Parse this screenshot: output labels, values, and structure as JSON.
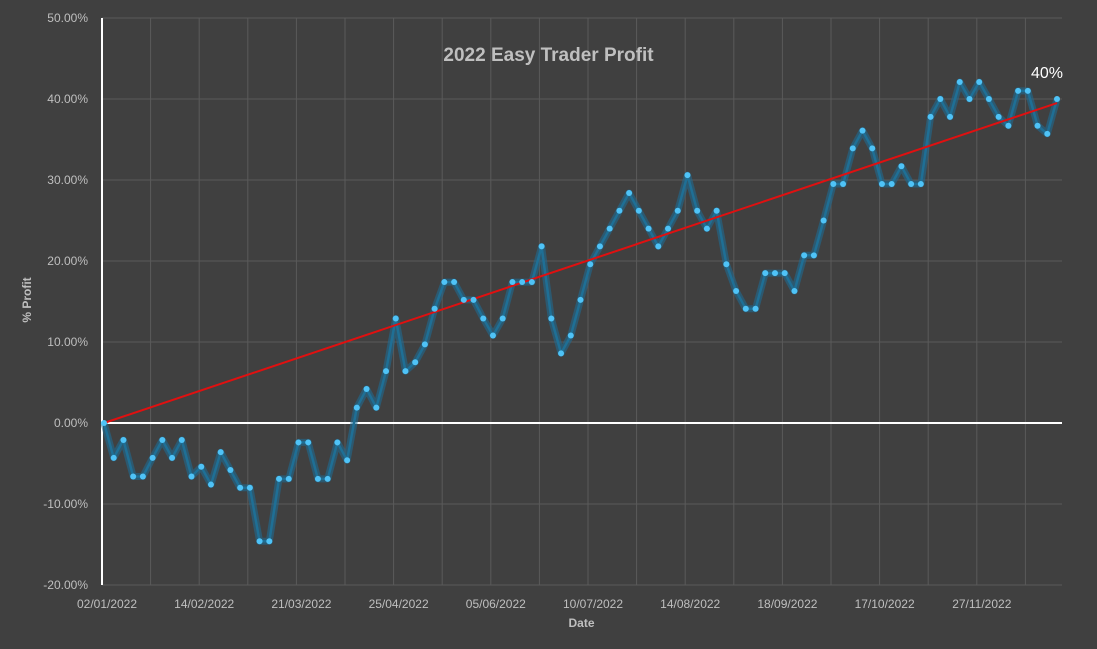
{
  "chart_data": {
    "type": "line",
    "title": "2022 Easy Trader Profit",
    "xlabel": "Date",
    "ylabel": "% Profit",
    "ylim": [
      -0.2,
      0.5
    ],
    "y_format": "percent",
    "x_tick_labels": [
      "02/01/2022",
      "14/02/2022",
      "21/03/2022",
      "25/04/2022",
      "05/06/2022",
      "10/07/2022",
      "14/08/2022",
      "18/09/2022",
      "17/10/2022",
      "27/11/2022"
    ],
    "y_tick_labels": [
      "50.00%",
      "40.00%",
      "30.00%",
      "20.00%",
      "10.00%",
      "0.00%",
      "-10.00%",
      "-20.00%"
    ],
    "grid": true,
    "end_label": "40%",
    "colors": {
      "background": "#404040",
      "series": "#4fc3f7",
      "series_glow": "#1c6e98",
      "trendline": "#e01010",
      "zero_line": "#ffffff",
      "grid": "#5a5a5a",
      "text": "#bfbfbf"
    },
    "series": [
      {
        "values": [
          0.0,
          -0.043,
          -0.021,
          -0.066,
          -0.066,
          -0.043,
          -0.021,
          -0.043,
          -0.021,
          -0.066,
          -0.054,
          -0.076,
          -0.036,
          -0.058,
          -0.08,
          -0.08,
          -0.146,
          -0.146,
          -0.069,
          -0.069,
          -0.024,
          -0.024,
          -0.069,
          -0.069,
          -0.024,
          -0.046,
          0.019,
          0.042,
          0.019,
          0.064,
          0.129,
          0.064,
          0.075,
          0.097,
          0.141,
          0.174,
          0.174,
          0.152,
          0.152,
          0.129,
          0.108,
          0.129,
          0.174,
          0.174,
          0.174,
          0.218,
          0.129,
          0.086,
          0.108,
          0.152,
          0.196,
          0.218,
          0.24,
          0.262,
          0.284,
          0.262,
          0.24,
          0.218,
          0.24,
          0.262,
          0.306,
          0.262,
          0.24,
          0.262,
          0.196,
          0.163,
          0.141,
          0.141,
          0.185,
          0.185,
          0.185,
          0.163,
          0.207,
          0.207,
          0.25,
          0.295,
          0.295,
          0.339,
          0.361,
          0.339,
          0.295,
          0.295,
          0.317,
          0.295,
          0.295,
          0.378,
          0.4,
          0.378,
          0.421,
          0.4,
          0.421,
          0.4,
          0.378,
          0.367,
          0.41,
          0.41,
          0.367,
          0.357,
          0.4
        ]
      }
    ],
    "trendline": {
      "start": 0.0,
      "end": 0.395
    }
  }
}
